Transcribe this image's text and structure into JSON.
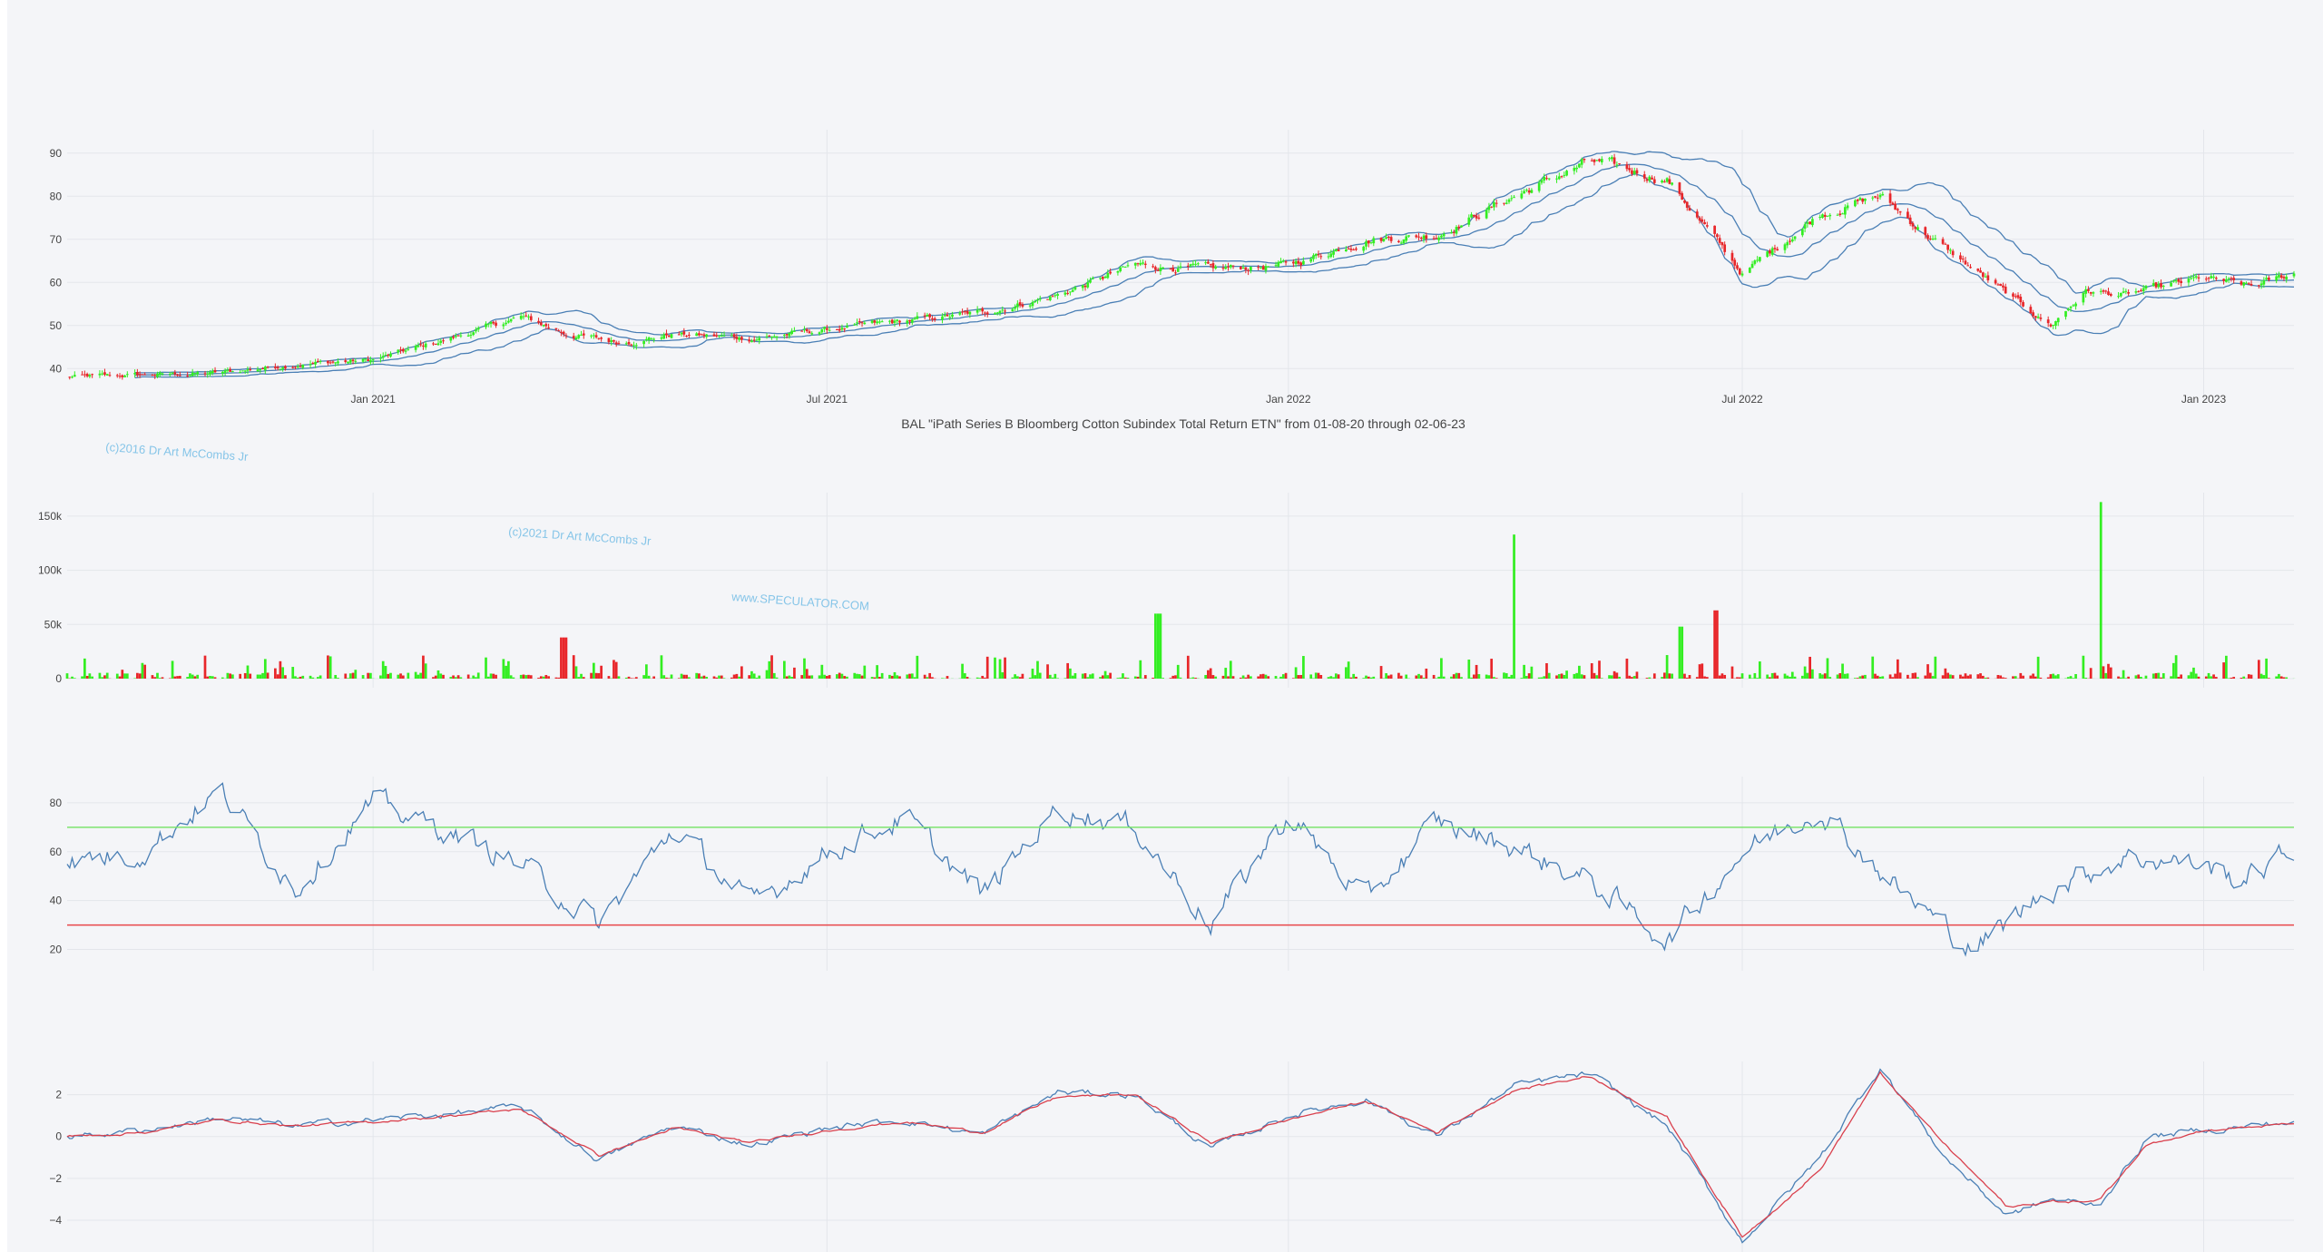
{
  "caption": "BAL \"iPath Series B Bloomberg Cotton Subindex Total Return ETN\" from 01-08-20 through 02-06-23",
  "watermarks": [
    "(c)2016 Dr Art McCombs Jr",
    "(c)2021 Dr Art McCombs Jr",
    "www.SPECULATOR.COM"
  ],
  "colors": {
    "up": "#33ee22",
    "down": "#e8262a",
    "band": "#4a7fb5",
    "rsi": "#4a7fb5",
    "overbought": "#7de36f",
    "oversold": "#e8474a",
    "macd": "#4a7fb5",
    "signal": "#d9404d",
    "grid": "#e3e6eb",
    "background": "#f4f5f8"
  },
  "chart_data": [
    {
      "type": "candlestick",
      "panel": "price",
      "xaxis": {
        "range": [
          "2020-09-01",
          "2023-02-06"
        ],
        "ticks": [
          "2021-01-01",
          "2021-07-01",
          "2022-01-01",
          "2022-07-01",
          "2023-01-01"
        ],
        "ticklabels": [
          "Jan 2021",
          "Jul 2021",
          "Jan 2022",
          "Jul 2022",
          "Jan 2023"
        ]
      },
      "ylim": [
        35,
        95
      ],
      "yticks": [
        40,
        50,
        60,
        70,
        80,
        90
      ],
      "overlay": "Bollinger Bands",
      "close_path": [
        [
          "2020-09-01",
          38
        ],
        [
          "2020-10-01",
          38.5
        ],
        [
          "2020-11-01",
          39
        ],
        [
          "2020-12-01",
          41
        ],
        [
          "2021-01-01",
          42
        ],
        [
          "2021-02-01",
          47
        ],
        [
          "2021-03-01",
          52
        ],
        [
          "2021-03-20",
          48
        ],
        [
          "2021-04-10",
          46
        ],
        [
          "2021-05-01",
          48
        ],
        [
          "2021-06-01",
          47
        ],
        [
          "2021-07-01",
          49
        ],
        [
          "2021-08-01",
          51
        ],
        [
          "2021-09-01",
          53
        ],
        [
          "2021-10-01",
          57
        ],
        [
          "2021-11-01",
          64
        ],
        [
          "2021-12-01",
          63
        ],
        [
          "2022-01-01",
          64
        ],
        [
          "2022-02-01",
          70
        ],
        [
          "2022-03-01",
          71
        ],
        [
          "2022-04-01",
          80
        ],
        [
          "2022-05-01",
          88
        ],
        [
          "2022-06-01",
          84
        ],
        [
          "2022-07-01",
          62
        ],
        [
          "2022-08-01",
          76
        ],
        [
          "2022-08-25",
          80
        ],
        [
          "2022-09-15",
          70
        ],
        [
          "2022-10-15",
          57
        ],
        [
          "2022-11-01",
          50
        ],
        [
          "2022-11-15",
          58
        ],
        [
          "2022-12-01",
          57
        ],
        [
          "2023-01-01",
          61
        ],
        [
          "2023-01-20",
          59
        ],
        [
          "2023-02-06",
          62
        ]
      ]
    },
    {
      "type": "bar",
      "panel": "volume",
      "ylim": [
        0,
        170000
      ],
      "yticks": [
        0,
        50000,
        100000,
        150000
      ],
      "yticklabels": [
        "0",
        "50k",
        "100k",
        "150k"
      ],
      "notable_spikes": [
        [
          "2021-03-18",
          38000,
          "down"
        ],
        [
          "2021-11-10",
          60000,
          "up"
        ],
        [
          "2022-04-02",
          133000,
          "up"
        ],
        [
          "2022-06-06",
          48000,
          "up"
        ],
        [
          "2022-06-20",
          63000,
          "down"
        ],
        [
          "2022-11-20",
          163000,
          "up"
        ]
      ]
    },
    {
      "type": "line",
      "panel": "rsi",
      "ylim": [
        15,
        90
      ],
      "yticks": [
        20,
        40,
        60,
        80
      ],
      "levels": [
        70,
        30
      ],
      "path": [
        [
          "2020-09-01",
          56
        ],
        [
          "2020-10-01",
          60
        ],
        [
          "2020-11-01",
          85
        ],
        [
          "2020-12-01",
          45
        ],
        [
          "2021-01-01",
          80
        ],
        [
          "2021-02-01",
          68
        ],
        [
          "2021-03-01",
          55
        ],
        [
          "2021-04-01",
          30
        ],
        [
          "2021-05-01",
          70
        ],
        [
          "2021-06-01",
          38
        ],
        [
          "2021-07-01",
          60
        ],
        [
          "2021-08-01",
          74
        ],
        [
          "2021-09-01",
          42
        ],
        [
          "2021-10-01",
          78
        ],
        [
          "2021-11-01",
          70
        ],
        [
          "2021-12-01",
          30
        ],
        [
          "2022-01-01",
          75
        ],
        [
          "2022-02-01",
          40
        ],
        [
          "2022-03-01",
          72
        ],
        [
          "2022-04-01",
          62
        ],
        [
          "2022-05-01",
          48
        ],
        [
          "2022-06-01",
          24
        ],
        [
          "2022-07-01",
          60
        ],
        [
          "2022-08-01",
          78
        ],
        [
          "2022-09-01",
          45
        ],
        [
          "2022-10-01",
          20
        ],
        [
          "2022-11-01",
          45
        ],
        [
          "2022-12-01",
          58
        ],
        [
          "2023-01-01",
          55
        ],
        [
          "2023-01-15",
          48
        ],
        [
          "2023-02-06",
          60
        ]
      ]
    },
    {
      "type": "line",
      "panel": "macd",
      "ylim": [
        -5.3,
        3.5
      ],
      "yticks": [
        -4,
        -2,
        0,
        2
      ],
      "yticklabels": [
        "−4",
        "−2",
        "0",
        "2"
      ],
      "series": [
        {
          "path": [
            [
              "2020-09-01",
              0
            ],
            [
              "2020-10-01",
              0.3
            ],
            [
              "2020-11-01",
              0.9
            ],
            [
              "2020-12-01",
              0.5
            ],
            [
              "2021-01-01",
              0.8
            ],
            [
              "2021-02-01",
              1.1
            ],
            [
              "2021-03-01",
              1.4
            ],
            [
              "2021-04-01",
              -1.1
            ],
            [
              "2021-05-01",
              0.5
            ],
            [
              "2021-06-01",
              -0.4
            ],
            [
              "2021-07-01",
              0.4
            ],
            [
              "2021-08-01",
              0.8
            ],
            [
              "2021-09-01",
              0.1
            ],
            [
              "2021-10-01",
              2.1
            ],
            [
              "2021-11-01",
              2.0
            ],
            [
              "2021-12-01",
              -0.6
            ],
            [
              "2022-01-01",
              1.0
            ],
            [
              "2022-02-01",
              1.8
            ],
            [
              "2022-03-01",
              0
            ],
            [
              "2022-04-01",
              2.4
            ],
            [
              "2022-05-01",
              3.0
            ],
            [
              "2022-06-01",
              0.5
            ],
            [
              "2022-07-01",
              -5.0
            ],
            [
              "2022-08-01",
              -1.0
            ],
            [
              "2022-08-25",
              3.3
            ],
            [
              "2022-09-20",
              -1.0
            ],
            [
              "2022-10-15",
              -3.8
            ],
            [
              "2022-11-01",
              -3.0
            ],
            [
              "2022-11-20",
              -3.3
            ],
            [
              "2022-12-10",
              0
            ],
            [
              "2023-01-01",
              0.3
            ],
            [
              "2023-02-06",
              0.7
            ]
          ]
        },
        {
          "path": [
            [
              "2020-09-01",
              0
            ],
            [
              "2020-10-01",
              0.2
            ],
            [
              "2020-11-01",
              0.8
            ],
            [
              "2020-12-01",
              0.5
            ],
            [
              "2021-01-01",
              0.7
            ],
            [
              "2021-02-01",
              1.0
            ],
            [
              "2021-03-01",
              1.3
            ],
            [
              "2021-04-01",
              -0.9
            ],
            [
              "2021-05-01",
              0.4
            ],
            [
              "2021-06-01",
              -0.3
            ],
            [
              "2021-07-01",
              0.3
            ],
            [
              "2021-08-01",
              0.7
            ],
            [
              "2021-09-01",
              0.2
            ],
            [
              "2021-10-01",
              1.9
            ],
            [
              "2021-11-01",
              2.0
            ],
            [
              "2021-12-01",
              -0.3
            ],
            [
              "2022-01-01",
              0.8
            ],
            [
              "2022-02-01",
              1.7
            ],
            [
              "2022-03-01",
              0.2
            ],
            [
              "2022-04-01",
              2.2
            ],
            [
              "2022-05-01",
              2.9
            ],
            [
              "2022-06-01",
              0.9
            ],
            [
              "2022-07-01",
              -4.8
            ],
            [
              "2022-08-01",
              -1.6
            ],
            [
              "2022-08-25",
              3.0
            ],
            [
              "2022-09-20",
              -0.4
            ],
            [
              "2022-10-15",
              -3.4
            ],
            [
              "2022-11-01",
              -3.1
            ],
            [
              "2022-11-20",
              -3.1
            ],
            [
              "2022-12-10",
              -0.3
            ],
            [
              "2023-01-01",
              0.3
            ],
            [
              "2023-02-06",
              0.6
            ]
          ]
        }
      ]
    }
  ]
}
